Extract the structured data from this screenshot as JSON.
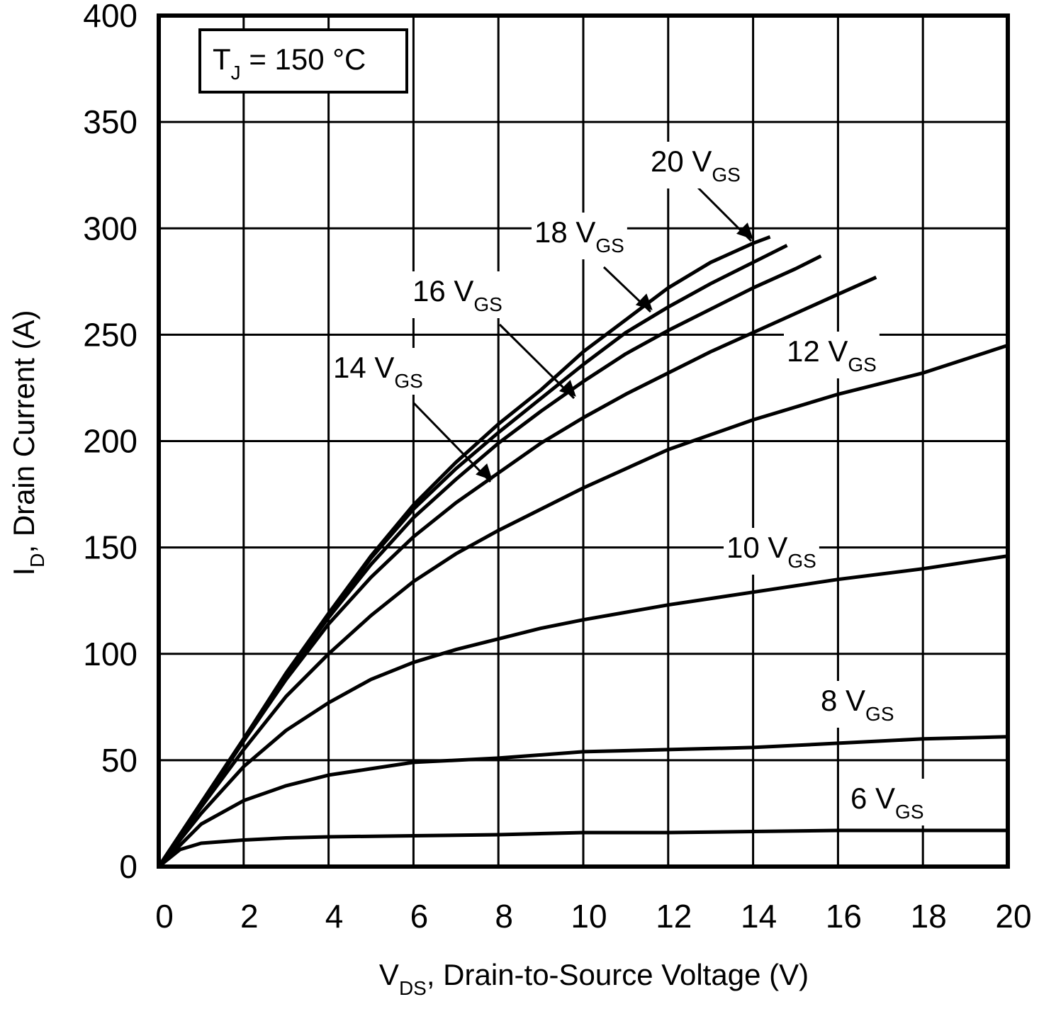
{
  "chart_data": {
    "type": "line",
    "annotation": [
      "T",
      "J",
      " = 150 °C"
    ],
    "x_label": [
      "V",
      "DS",
      ", Drain-to-Source Voltage (V)"
    ],
    "y_label": [
      "I",
      "D",
      ", Drain Current (A)"
    ],
    "xlim": [
      0,
      20
    ],
    "ylim": [
      0,
      400
    ],
    "xticks": [
      0,
      2,
      4,
      6,
      8,
      10,
      12,
      14,
      16,
      18,
      20
    ],
    "yticks": [
      0,
      50,
      100,
      150,
      200,
      250,
      300,
      350,
      400
    ],
    "grid": true,
    "series": [
      {
        "name": "20 V",
        "name_sub": "GS",
        "color": "#000000",
        "x": [
          0,
          1,
          2,
          3,
          4,
          5,
          6,
          7,
          8,
          9,
          10,
          11,
          12,
          13,
          14,
          14.4
        ],
        "values": [
          0,
          30,
          60,
          91,
          119,
          146,
          170,
          190,
          208,
          224,
          242,
          257,
          272,
          284,
          293,
          296
        ]
      },
      {
        "name": "18 V",
        "name_sub": "GS",
        "color": "#000000",
        "x": [
          0,
          1,
          2,
          3,
          4,
          5,
          6,
          7,
          8,
          9,
          10,
          11,
          12,
          13,
          14,
          14.8
        ],
        "values": [
          0,
          30,
          60,
          90,
          118,
          145,
          168,
          187,
          204,
          220,
          236,
          251,
          263,
          274,
          284,
          292
        ]
      },
      {
        "name": "16 V",
        "name_sub": "GS",
        "color": "#000000",
        "x": [
          0,
          1,
          2,
          3,
          4,
          5,
          6,
          7,
          8,
          9,
          10,
          11,
          12,
          13,
          14,
          15,
          15.6
        ],
        "values": [
          0,
          30,
          60,
          90,
          117,
          142,
          164,
          182,
          199,
          214,
          228,
          241,
          252,
          262,
          272,
          281,
          287
        ]
      },
      {
        "name": "14 V",
        "name_sub": "GS",
        "color": "#000000",
        "x": [
          0,
          1,
          2,
          3,
          4,
          5,
          6,
          7,
          8,
          9,
          10,
          11,
          12,
          13,
          14,
          15,
          16,
          16.9
        ],
        "values": [
          0,
          29,
          59,
          88,
          114,
          136,
          155,
          171,
          185,
          199,
          211,
          222,
          232,
          242,
          251,
          260,
          269,
          277
        ]
      },
      {
        "name": "12 V",
        "name_sub": "GS",
        "color": "#000000",
        "x": [
          0,
          1,
          2,
          3,
          4,
          5,
          6,
          7,
          8,
          9,
          10,
          12,
          14,
          16,
          18,
          20
        ],
        "values": [
          0,
          28,
          55,
          80,
          100,
          118,
          134,
          147,
          158,
          168,
          178,
          196,
          210,
          222,
          232,
          245
        ]
      },
      {
        "name": "10 V",
        "name_sub": "GS",
        "color": "#000000",
        "x": [
          0,
          1,
          2,
          3,
          4,
          5,
          6,
          7,
          8,
          9,
          10,
          12,
          14,
          16,
          18,
          20
        ],
        "values": [
          0,
          25,
          47,
          64,
          77,
          88,
          96,
          102,
          107,
          112,
          116,
          123,
          129,
          135,
          140,
          146
        ]
      },
      {
        "name": "8 V",
        "name_sub": "GS",
        "color": "#000000",
        "x": [
          0,
          0.5,
          1,
          2,
          3,
          4,
          5,
          6,
          8,
          10,
          12,
          14,
          16,
          18,
          20
        ],
        "values": [
          0,
          10,
          20,
          31,
          38,
          43,
          46,
          49,
          51,
          54,
          55,
          56,
          58,
          60,
          61
        ]
      },
      {
        "name": "6 V",
        "name_sub": "GS",
        "color": "#000000",
        "x": [
          0,
          0.5,
          1,
          2,
          3,
          4,
          6,
          8,
          10,
          12,
          14,
          16,
          20
        ],
        "values": [
          0,
          8,
          11,
          12.5,
          13.5,
          14,
          14.5,
          15,
          16,
          16,
          16.5,
          17,
          17
        ]
      }
    ]
  }
}
